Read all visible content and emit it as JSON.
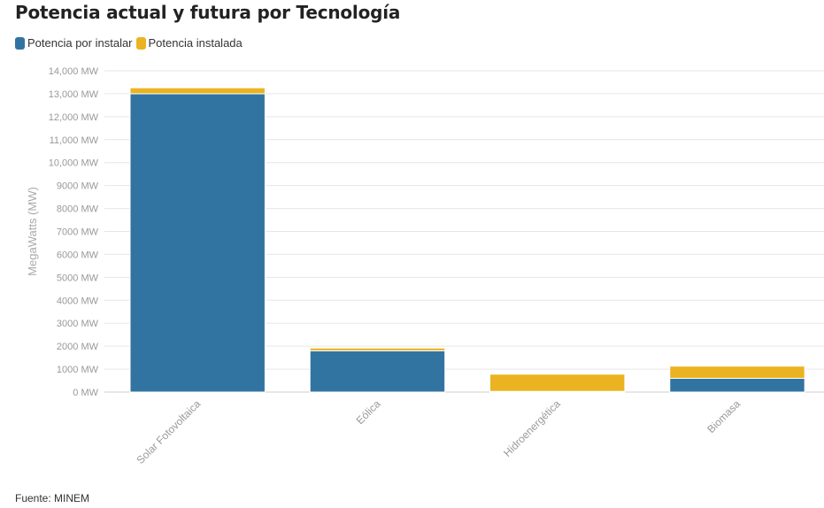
{
  "chart_data": {
    "type": "bar",
    "stacked": true,
    "title": "Potencia actual y futura por Tecnología",
    "ylabel": "MegaWatts (MW)",
    "xlabel": "",
    "categories": [
      "Solar Fotovoltaica",
      "Eólica",
      "Hidroenergética",
      "Biomasa"
    ],
    "series": [
      {
        "name": "Potencia por instalar",
        "color": "#3274a1",
        "values": [
          13000,
          1800,
          30,
          600
        ]
      },
      {
        "name": "Potencia instalada",
        "color": "#ebb321",
        "values": [
          260,
          120,
          750,
          530
        ]
      }
    ],
    "ylim": [
      0,
      14000
    ],
    "yticks": [
      0,
      1000,
      2000,
      3000,
      4000,
      5000,
      6000,
      7000,
      8000,
      9000,
      10000,
      11000,
      12000,
      13000,
      14000
    ],
    "ytick_labels": [
      "0 MW",
      "1000 MW",
      "2000 MW",
      "3000 MW",
      "4000 MW",
      "5000 MW",
      "6000 MW",
      "7000 MW",
      "8000 MW",
      "9000 MW",
      "10,000 MW",
      "11,000 MW",
      "12,000 MW",
      "13,000 MW",
      "14,000 MW"
    ],
    "grid": true,
    "legend_position": "top-left"
  },
  "source_text": "Fuente: MINEM"
}
